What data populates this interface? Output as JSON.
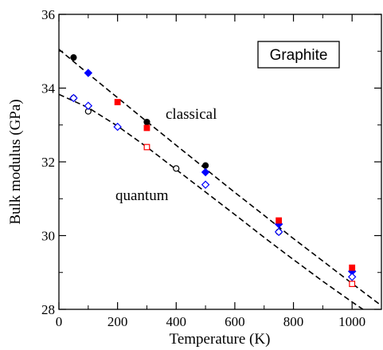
{
  "chart_data": {
    "type": "scatter",
    "xlabel": "Temperature  (K)",
    "ylabel": "Bulk  modulus  (GPa)",
    "xlim": [
      0,
      1100
    ],
    "ylim": [
      28,
      36
    ],
    "xticks": [
      0,
      200,
      400,
      600,
      800,
      1000
    ],
    "yticks": [
      28,
      30,
      32,
      34,
      36
    ],
    "grid": false,
    "legend_box": "Graphite",
    "annotations": {
      "classical": "classical",
      "quantum": "quantum"
    },
    "series": [
      {
        "group": "classical",
        "marker": "filled-circle",
        "color": "#000000",
        "x": [
          50,
          300,
          500
        ],
        "y": [
          34.83,
          33.08,
          31.9
        ]
      },
      {
        "group": "classical",
        "marker": "filled-diamond",
        "color": "#0000ff",
        "x": [
          100,
          500,
          750,
          1000
        ],
        "y": [
          34.41,
          31.72,
          30.31,
          29.03
        ]
      },
      {
        "group": "classical",
        "marker": "filled-square",
        "color": "#ff0000",
        "x": [
          200,
          300,
          750,
          1000
        ],
        "y": [
          33.62,
          32.92,
          30.41,
          29.13
        ]
      },
      {
        "group": "quantum",
        "marker": "open-circle",
        "color": "#000000",
        "x": [
          50,
          100,
          400,
          750
        ],
        "y": [
          33.73,
          33.37,
          31.82,
          30.1
        ]
      },
      {
        "group": "quantum",
        "marker": "open-diamond",
        "color": "#0000ff",
        "x": [
          50,
          100,
          200,
          500,
          750,
          1000
        ],
        "y": [
          33.73,
          33.52,
          32.95,
          31.38,
          30.1,
          28.88
        ]
      },
      {
        "group": "quantum",
        "marker": "open-square",
        "color": "#ff0000",
        "x": [
          300,
          1000
        ],
        "y": [
          32.4,
          28.69
        ]
      }
    ],
    "fits": [
      {
        "name": "classical",
        "style": "dashed",
        "color": "#000000",
        "x": [
          0,
          100,
          200,
          300,
          400,
          500,
          600,
          700,
          800,
          900,
          1000,
          1100
        ],
        "y": [
          35.05,
          34.39,
          33.74,
          33.09,
          32.45,
          31.81,
          31.17,
          30.55,
          29.92,
          29.31,
          28.7,
          28.1
        ]
      },
      {
        "name": "quantum",
        "style": "dashed",
        "color": "#000000",
        "x": [
          0,
          100,
          200,
          300,
          400,
          500,
          600,
          700,
          800,
          900,
          1000,
          1100
        ],
        "y": [
          33.83,
          33.47,
          32.97,
          32.4,
          31.79,
          31.18,
          30.57,
          29.95,
          29.35,
          28.76,
          28.2,
          27.66
        ]
      }
    ]
  }
}
